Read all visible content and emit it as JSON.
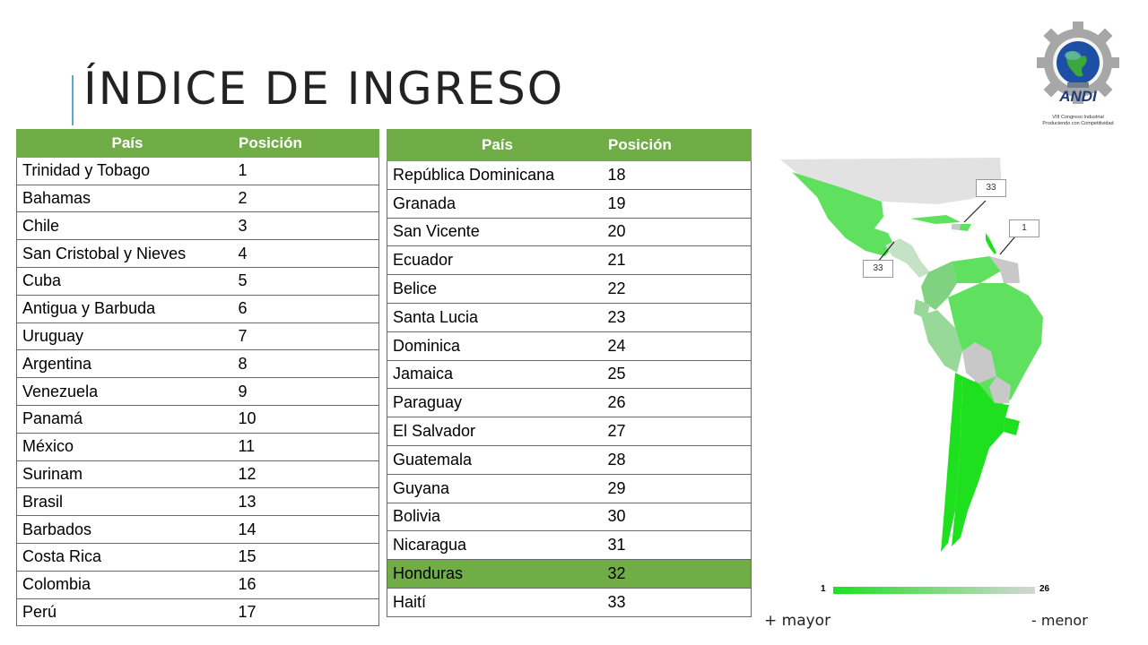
{
  "title": "ÍNDICE DE INGRESO",
  "table_left": {
    "headers": [
      "País",
      "Posición"
    ],
    "rows": [
      [
        "Trinidad y Tobago",
        "1"
      ],
      [
        "Bahamas",
        "2"
      ],
      [
        "Chile",
        "3"
      ],
      [
        "San Cristobal y Nieves",
        "4"
      ],
      [
        "Cuba",
        "5"
      ],
      [
        "Antigua y Barbuda",
        "6"
      ],
      [
        "Uruguay",
        "7"
      ],
      [
        "Argentina",
        "8"
      ],
      [
        "Venezuela",
        "9"
      ],
      [
        "Panamá",
        "10"
      ],
      [
        "México",
        "11"
      ],
      [
        "Surinam",
        "12"
      ],
      [
        "Brasil",
        "13"
      ],
      [
        "Barbados",
        "14"
      ],
      [
        "Costa Rica",
        "15"
      ],
      [
        "Colombia",
        "16"
      ],
      [
        "Perú",
        "17"
      ]
    ]
  },
  "table_right": {
    "headers": [
      "País",
      "Posición"
    ],
    "rows": [
      [
        "República Dominicana",
        "18"
      ],
      [
        "Granada",
        "19"
      ],
      [
        "San Vicente",
        "20"
      ],
      [
        "Ecuador",
        "21"
      ],
      [
        "Belice",
        "22"
      ],
      [
        "Santa Lucia",
        "23"
      ],
      [
        "Dominica",
        "24"
      ],
      [
        "Jamaica",
        "25"
      ],
      [
        "Paraguay",
        "26"
      ],
      [
        "El Salvador",
        "27"
      ],
      [
        "Guatemala",
        "28"
      ],
      [
        "Guyana",
        "29"
      ],
      [
        "Bolivia",
        "30"
      ],
      [
        "Nicaragua",
        "31"
      ],
      [
        "Honduras",
        "32"
      ],
      [
        "Haití",
        "33"
      ]
    ],
    "highlighted_row": "Honduras"
  },
  "map": {
    "callouts": [
      "33",
      "1",
      "33"
    ],
    "legend": {
      "min": "1",
      "max": "26"
    },
    "min_color": "#1ee01e",
    "max_color": "#d6d6d6"
  },
  "captions": {
    "mayor": "+ mayor",
    "menor": "- menor"
  },
  "logo": {
    "name": "ANDI",
    "subtitle1": "VIII Congreso Industrial",
    "subtitle2": "Produciendo con Competitividad"
  },
  "colors": {
    "header_green": "#70ad47",
    "accent_blue": "#5aa9c9"
  }
}
